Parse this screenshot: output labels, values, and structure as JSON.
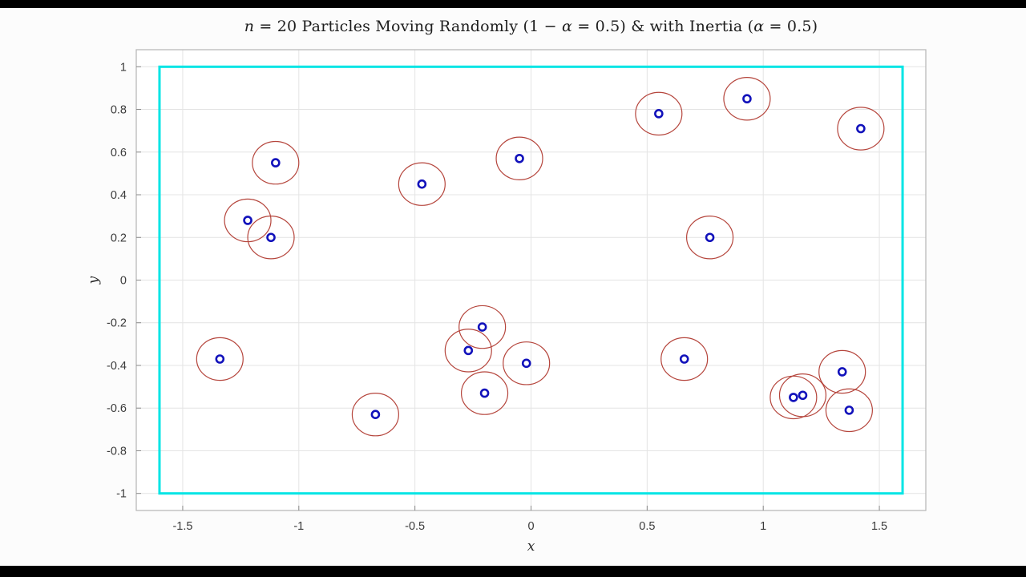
{
  "frame": {
    "letterbox_color": "#000000",
    "figure_background": "#fcfcfc"
  },
  "chart_data": {
    "type": "scatter",
    "title": "n = 20 Particles Moving Randomly (1 − α = 0.5) & with Inertia (α = 0.5)",
    "title_segments": [
      {
        "text": "n",
        "style": "italic"
      },
      {
        "text": " = 20 Particles Moving Randomly (1 − ",
        "style": "normal"
      },
      {
        "text": "α",
        "style": "italic"
      },
      {
        "text": " = 0.5) & with Inertia (",
        "style": "normal"
      },
      {
        "text": "α",
        "style": "italic"
      },
      {
        "text": " = 0.5)",
        "style": "normal"
      }
    ],
    "xlabel": "x",
    "ylabel": "y",
    "xlim": [
      -1.7,
      1.7
    ],
    "ylim": [
      -1.08,
      1.08
    ],
    "xticks": [
      -1.5,
      -1,
      -0.5,
      0,
      0.5,
      1,
      1.5
    ],
    "xtick_labels": [
      "-1.5",
      "-1",
      "-0.5",
      "0",
      "0.5",
      "1",
      "1.5"
    ],
    "yticks": [
      -1,
      -0.8,
      -0.6,
      -0.4,
      -0.2,
      0,
      0.2,
      0.4,
      0.6,
      0.8,
      1
    ],
    "ytick_labels": [
      "-1",
      "-0.8",
      "-0.6",
      "-0.4",
      "-0.2",
      "0",
      "0.2",
      "0.4",
      "0.6",
      "0.8",
      "1"
    ],
    "grid": true,
    "legend": "none",
    "colors": {
      "grid": "#e4e4e4",
      "axes_box": "#b5b5b5",
      "tick": "#8a8a8a",
      "tick_label": "#3b3b3b",
      "plot_background": "#ffffff"
    },
    "boundary": {
      "x": [
        -1.6,
        1.6
      ],
      "y": [
        -1,
        1
      ],
      "color": "#00e5e5",
      "stroke_width": 3
    },
    "particles": {
      "count": 20,
      "marker_color": "#1212bb",
      "radius_color": "#b5453c",
      "interaction_radius": 0.1,
      "points": [
        {
          "x": -1.1,
          "y": 0.55
        },
        {
          "x": -1.22,
          "y": 0.28
        },
        {
          "x": -1.12,
          "y": 0.2
        },
        {
          "x": -0.47,
          "y": 0.45
        },
        {
          "x": -0.05,
          "y": 0.57
        },
        {
          "x": 0.55,
          "y": 0.78
        },
        {
          "x": 0.93,
          "y": 0.85
        },
        {
          "x": 1.42,
          "y": 0.71
        },
        {
          "x": 0.77,
          "y": 0.2
        },
        {
          "x": -1.34,
          "y": -0.37
        },
        {
          "x": -0.21,
          "y": -0.22
        },
        {
          "x": -0.27,
          "y": -0.33
        },
        {
          "x": -0.2,
          "y": -0.53
        },
        {
          "x": -0.02,
          "y": -0.39
        },
        {
          "x": -0.67,
          "y": -0.63
        },
        {
          "x": 0.66,
          "y": -0.37
        },
        {
          "x": 1.13,
          "y": -0.55
        },
        {
          "x": 1.17,
          "y": -0.54
        },
        {
          "x": 1.34,
          "y": -0.43
        },
        {
          "x": 1.37,
          "y": -0.61
        }
      ]
    }
  }
}
